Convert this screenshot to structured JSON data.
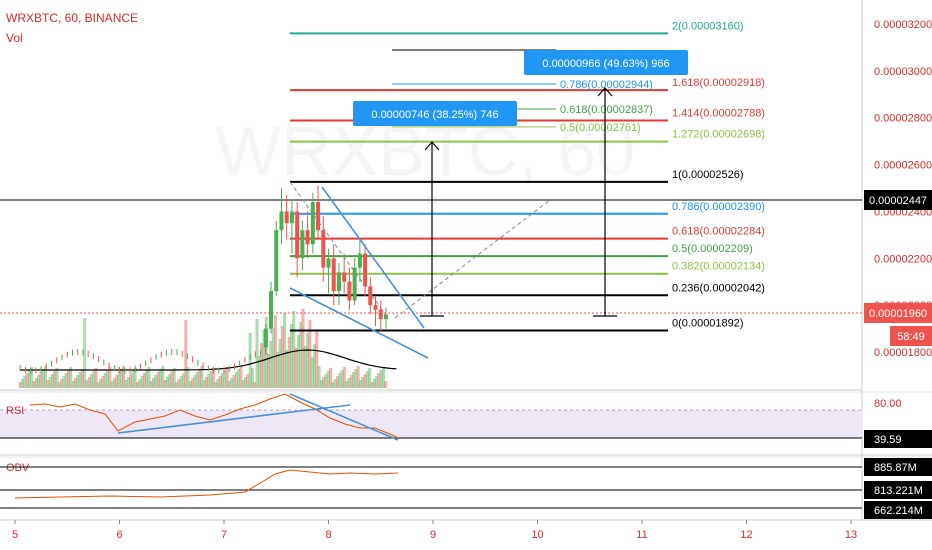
{
  "header": {
    "symbol": "WRXBTC, 60, BINANCE",
    "volume_label": "Vol"
  },
  "watermark": "WRXBTC, 60",
  "colors": {
    "candle_up": "#4caf50",
    "candle_down": "#ef5350",
    "fib_black": "#000000",
    "fib_blue": "#2196f3",
    "fib_red": "#e53935",
    "fib_green": "#43a047",
    "fib_lime": "#8bc34a",
    "fib_teal": "#26a69a",
    "trend_blue": "#4a90d9",
    "rsi_band": "#ede7f6",
    "rsi_line": "#e65100"
  },
  "badges": {
    "measure_1": "0.00000746 (38.25%) 746",
    "measure_2": "0.00000966 (49.63%) 966",
    "current_price": "0.00001960",
    "countdown": "58:49",
    "last_close_line": "0.00002447"
  },
  "chart_data": {
    "type": "candlestick",
    "symbol": "WRXBTC",
    "interval": "60",
    "exchange": "BINANCE",
    "y_axis": {
      "range": [
        1.72e-05,
        3.23e-05
      ],
      "ticks": [
        "0.00003200",
        "0.00003000",
        "0.00002800",
        "0.00002600",
        "0.00002400",
        "0.00002200",
        "0.00002000",
        "0.00001800"
      ]
    },
    "x_axis": {
      "range": [
        5,
        13
      ],
      "ticks": [
        "5",
        "6",
        "7",
        "8",
        "9",
        "10",
        "11",
        "12",
        "13"
      ]
    },
    "candles": [
      [
        7.4,
        1.82e-05,
        1.92e-05,
        1.8e-05,
        1.9e-05
      ],
      [
        7.45,
        1.9e-05,
        2.1e-05,
        1.88e-05,
        2.06e-05
      ],
      [
        7.5,
        2.06e-05,
        2.36e-05,
        2.04e-05,
        2.32e-05
      ],
      [
        7.55,
        2.32e-05,
        2.5e-05,
        2.26e-05,
        2.4e-05
      ],
      [
        7.6,
        2.4e-05,
        2.47e-05,
        2.28e-05,
        2.35e-05
      ],
      [
        7.65,
        2.35e-05,
        2.45e-05,
        2.22e-05,
        2.4e-05
      ],
      [
        7.7,
        2.4e-05,
        2.44e-05,
        2.12e-05,
        2.2e-05
      ],
      [
        7.75,
        2.2e-05,
        2.36e-05,
        2.15e-05,
        2.32e-05
      ],
      [
        7.8,
        2.32e-05,
        2.4e-05,
        2.2e-05,
        2.26e-05
      ],
      [
        7.85,
        2.26e-05,
        2.48e-05,
        2.22e-05,
        2.44e-05
      ],
      [
        7.9,
        2.44e-05,
        2.51e-05,
        2.28e-05,
        2.32e-05
      ],
      [
        7.95,
        2.32e-05,
        2.38e-05,
        2.1e-05,
        2.16e-05
      ],
      [
        8.0,
        2.16e-05,
        2.24e-05,
        2.05e-05,
        2.2e-05
      ],
      [
        8.05,
        2.2e-05,
        2.26e-05,
        2e-05,
        2.06e-05
      ],
      [
        8.1,
        2.06e-05,
        2.18e-05,
        2e-05,
        2.14e-05
      ],
      [
        8.15,
        2.14e-05,
        2.22e-05,
        2.05e-05,
        2.1e-05
      ],
      [
        8.2,
        2.1e-05,
        2.16e-05,
        1.98e-05,
        2.02e-05
      ],
      [
        8.25,
        2.02e-05,
        2.2e-05,
        2e-05,
        2.16e-05
      ],
      [
        8.3,
        2.16e-05,
        2.28e-05,
        2.1e-05,
        2.22e-05
      ],
      [
        8.35,
        2.22e-05,
        2.26e-05,
        2.04e-05,
        2.08e-05
      ],
      [
        8.4,
        2.08e-05,
        2.12e-05,
        1.96e-05,
        2e-05
      ],
      [
        8.45,
        2e-05,
        2.04e-05,
        1.91e-05,
        1.98e-05
      ],
      [
        8.5,
        1.98e-05,
        2.02e-05,
        1.89e-05,
        1.94e-05
      ],
      [
        8.55,
        1.94e-05,
        1.99e-05,
        1.9e-05,
        1.96e-05
      ]
    ],
    "fib_retracement": [
      {
        "label": "0(0.00001892)",
        "value": 1.892e-05,
        "color": "fib_black"
      },
      {
        "label": "0.236(0.00002042)",
        "value": 2.042e-05,
        "color": "fib_black"
      },
      {
        "label": "0.382(0.00002134)",
        "value": 2.134e-05,
        "color": "fib_lime"
      },
      {
        "label": "0.5(0.00002209)",
        "value": 2.209e-05,
        "color": "fib_green"
      },
      {
        "label": "0.618(0.00002284)",
        "value": 2.284e-05,
        "color": "fib_red"
      },
      {
        "label": "0.786(0.00002390)",
        "value": 2.39e-05,
        "color": "fib_blue"
      },
      {
        "label": "1(0.00002526)",
        "value": 2.526e-05,
        "color": "fib_black"
      },
      {
        "label": "1.272(0.00002698)",
        "value": 2.698e-05,
        "color": "fib_lime"
      },
      {
        "label": "1.414(0.00002788)",
        "value": 2.788e-05,
        "color": "fib_red"
      },
      {
        "label": "1.618(0.00002918)",
        "value": 2.918e-05,
        "color": "fib_red"
      },
      {
        "label": "2(0.00003160)",
        "value": 3.16e-05,
        "color": "fib_teal"
      }
    ],
    "fib_second": [
      {
        "label": "0.5(0.00002761)",
        "value": 2.761e-05,
        "color": "fib_lime"
      },
      {
        "label": "0.618(0.00002837)",
        "value": 2.837e-05,
        "color": "fib_green"
      },
      {
        "label": "0.786(0.00002944)",
        "value": 2.944e-05,
        "color": "fib_blue"
      }
    ],
    "rsi": {
      "label": "RSI",
      "ticks": [
        "80.00"
      ],
      "current": "39.59"
    },
    "obv": {
      "label": "OBV",
      "values": [
        "885.87M",
        "813.221M",
        "662.214M"
      ]
    }
  }
}
